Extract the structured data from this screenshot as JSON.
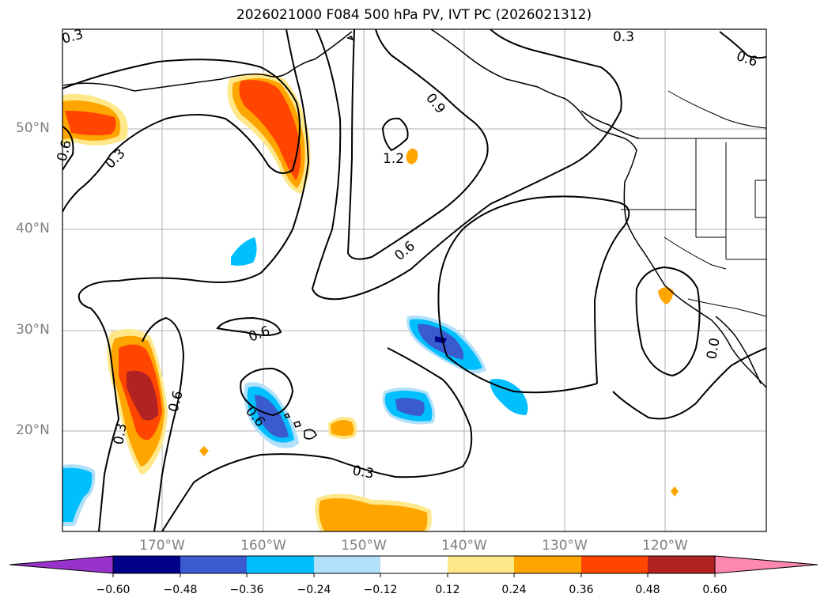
{
  "title": "2026021000 F084 500 hPa PV, IVT PC (2026021312)",
  "lat_labels": [
    "50°N",
    "40°N",
    "30°N",
    "20°N"
  ],
  "lon_labels": [
    "170°W",
    "160°W",
    "150°W",
    "140°W",
    "130°W",
    "120°W"
  ],
  "contour_labels": [
    "0.3",
    "0.6",
    "0.3",
    "0.6",
    "0.9",
    "1.2",
    "0.6",
    "0.6",
    "0.6",
    "0.3",
    "0.3",
    "0.6",
    "0.3",
    "0.3",
    "0.6",
    "0.0"
  ],
  "colorbar": {
    "ticks": [
      "−0.60",
      "−0.48",
      "−0.36",
      "−0.24",
      "−0.12",
      "0.12",
      "0.24",
      "0.36",
      "0.48",
      "0.60"
    ],
    "colors": [
      "#9932cc",
      "#00008b",
      "#3a5bd0",
      "#00bfff",
      "#b0e0fa",
      "#ffffff",
      "#ffe88a",
      "#ffa500",
      "#ff4500",
      "#b22222",
      "#ff88b0"
    ]
  }
}
